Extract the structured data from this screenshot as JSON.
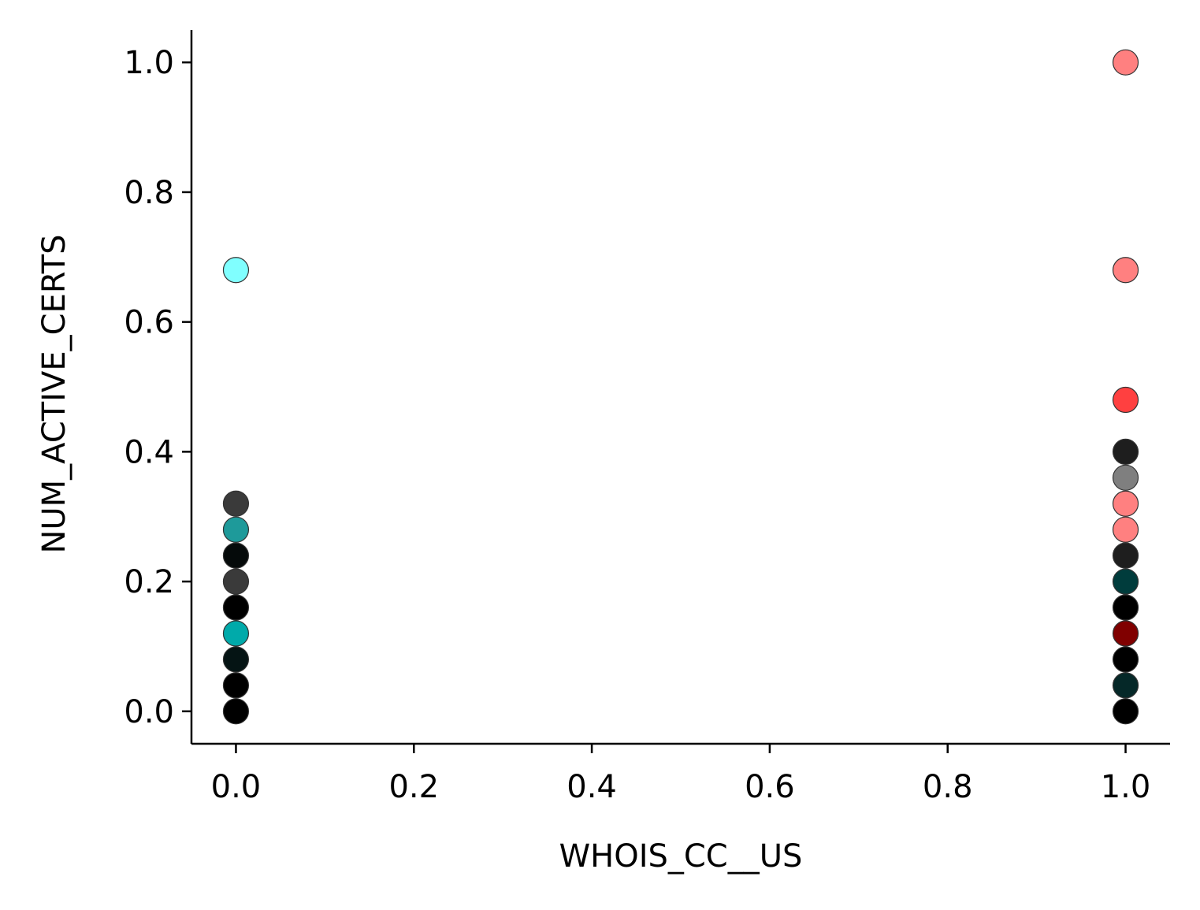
{
  "chart_data": {
    "type": "scatter",
    "title": "",
    "xlabel": "WHOIS_CC__US",
    "ylabel": "NUM_ACTIVE_CERTS",
    "xlim": [
      -0.05,
      1.05
    ],
    "ylim": [
      -0.05,
      1.05
    ],
    "xticks": [
      0.0,
      0.2,
      0.4,
      0.6,
      0.8,
      1.0
    ],
    "yticks": [
      0.0,
      0.2,
      0.4,
      0.6,
      0.8,
      1.0
    ],
    "xtick_labels": [
      "0.0",
      "0.2",
      "0.4",
      "0.6",
      "0.8",
      "1.0"
    ],
    "ytick_labels": [
      "0.0",
      "0.2",
      "0.4",
      "0.6",
      "0.8",
      "1.0"
    ],
    "grid": false,
    "points": [
      {
        "x": 0.0,
        "y": 0.0,
        "color": "#000000"
      },
      {
        "x": 0.0,
        "y": 0.04,
        "color": "#000000"
      },
      {
        "x": 0.0,
        "y": 0.08,
        "color": "#051414"
      },
      {
        "x": 0.0,
        "y": 0.12,
        "color": "#00aaaa"
      },
      {
        "x": 0.0,
        "y": 0.16,
        "color": "#000000"
      },
      {
        "x": 0.0,
        "y": 0.2,
        "color": "#3a3a3a"
      },
      {
        "x": 0.0,
        "y": 0.24,
        "color": "#050a0a"
      },
      {
        "x": 0.0,
        "y": 0.28,
        "color": "#1e9a9a"
      },
      {
        "x": 0.0,
        "y": 0.32,
        "color": "#3a3a3a"
      },
      {
        "x": 0.0,
        "y": 0.68,
        "color": "#80ffff"
      },
      {
        "x": 1.0,
        "y": 0.0,
        "color": "#000000"
      },
      {
        "x": 1.0,
        "y": 0.04,
        "color": "#052828"
      },
      {
        "x": 1.0,
        "y": 0.08,
        "color": "#000000"
      },
      {
        "x": 1.0,
        "y": 0.12,
        "color": "#800000"
      },
      {
        "x": 1.0,
        "y": 0.16,
        "color": "#000000"
      },
      {
        "x": 1.0,
        "y": 0.2,
        "color": "#003c3c"
      },
      {
        "x": 1.0,
        "y": 0.24,
        "color": "#1e1e1e"
      },
      {
        "x": 1.0,
        "y": 0.28,
        "color": "#ff8080"
      },
      {
        "x": 1.0,
        "y": 0.32,
        "color": "#ff8080"
      },
      {
        "x": 1.0,
        "y": 0.36,
        "color": "#7f7f7f"
      },
      {
        "x": 1.0,
        "y": 0.4,
        "color": "#1e1e1e"
      },
      {
        "x": 1.0,
        "y": 0.48,
        "color": "#ff4040"
      },
      {
        "x": 1.0,
        "y": 0.68,
        "color": "#ff8080"
      },
      {
        "x": 1.0,
        "y": 1.0,
        "color": "#ff8080"
      }
    ]
  }
}
